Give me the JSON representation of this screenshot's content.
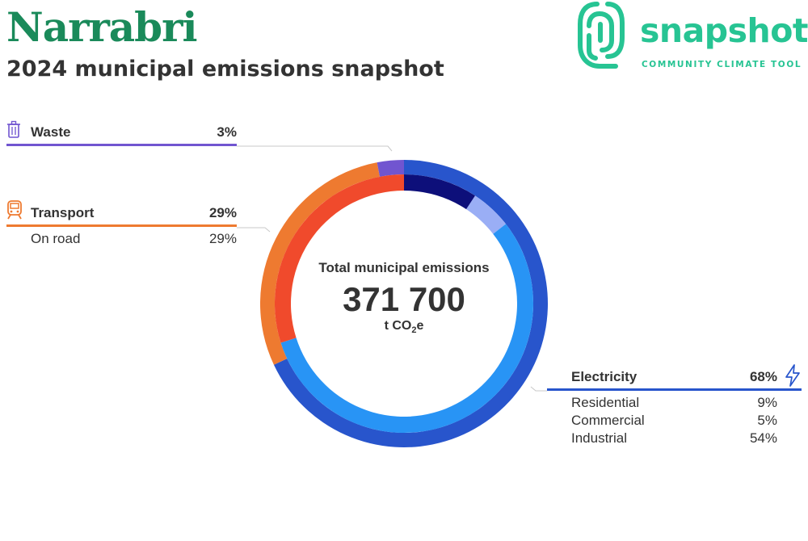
{
  "header": {
    "title": "Narrabri",
    "subtitle": "2024 municipal emissions snapshot"
  },
  "brand": {
    "wordmark": "snapshot",
    "tagline": "COMMUNITY CLIMATE TOOL",
    "color": "#27c493"
  },
  "center": {
    "label": "Total municipal emissions",
    "value": "371 700",
    "unit_prefix": "t CO",
    "unit_sub": "2",
    "unit_suffix": "e"
  },
  "sectors": {
    "waste": {
      "label": "Waste",
      "pct": "3%",
      "color": "#7155d0",
      "icon": "trash-bin-icon"
    },
    "transport": {
      "label": "Transport",
      "pct": "29%",
      "color": "#ee7a30",
      "icon": "train-icon",
      "subs": [
        {
          "label": "On road",
          "pct": "29%"
        }
      ]
    },
    "electricity": {
      "label": "Electricity",
      "pct": "68%",
      "color": "#2855cc",
      "icon": "lightning-bolt-icon",
      "subs": [
        {
          "label": "Residential",
          "pct": "9%"
        },
        {
          "label": "Commercial",
          "pct": "5%"
        },
        {
          "label": "Industrial",
          "pct": "54%"
        }
      ]
    }
  },
  "chart_data": {
    "type": "pie",
    "style": "donut",
    "total": 371700,
    "unit": "t CO2e",
    "outer_ring": [
      {
        "name": "Electricity",
        "value": 68,
        "color": "#2855cc"
      },
      {
        "name": "Transport",
        "value": 29,
        "color": "#ee7a30"
      },
      {
        "name": "Waste",
        "value": 3,
        "color": "#7155d0"
      }
    ],
    "inner_ring": [
      {
        "name": "Residential",
        "value": 9,
        "color": "#0d0f7a"
      },
      {
        "name": "Commercial",
        "value": 5,
        "color": "#9aaef5"
      },
      {
        "name": "Industrial",
        "value": 54,
        "color": "#2894f5"
      },
      {
        "name": "On road",
        "value": 29,
        "color": "#f04a2c"
      }
    ]
  }
}
